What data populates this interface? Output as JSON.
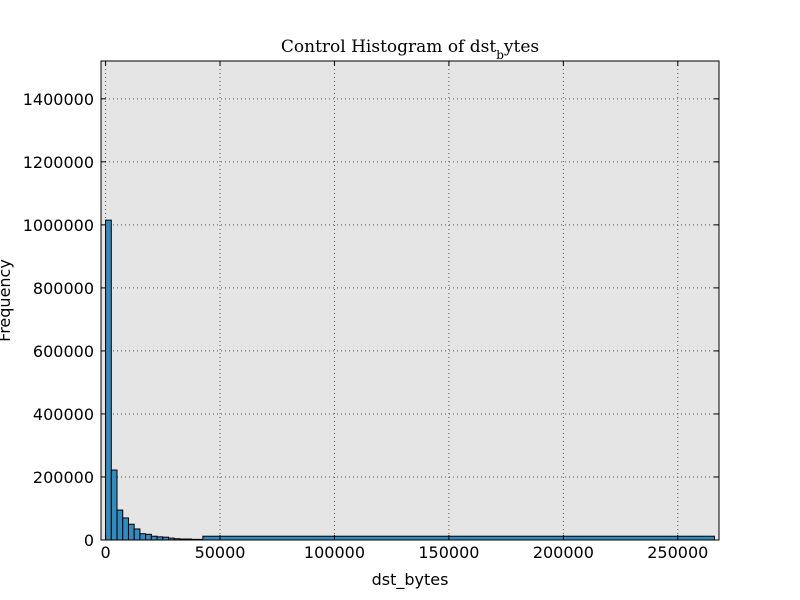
{
  "chart_data": {
    "type": "bar",
    "title": "Control Histogram of dst",
    "title_subscript": "b",
    "title_suffix": "ytes",
    "xlabel": "dst_bytes",
    "ylabel": "Frequency",
    "xlim": [
      -2000,
      268000
    ],
    "ylim": [
      0,
      1520000
    ],
    "x_ticks": [
      0,
      50000,
      100000,
      150000,
      200000,
      250000
    ],
    "x_tick_labels": [
      "0",
      "50000",
      "100000",
      "150000",
      "200000",
      "250000"
    ],
    "y_ticks": [
      0,
      200000,
      400000,
      600000,
      800000,
      1000000,
      1200000,
      1400000
    ],
    "y_tick_labels": [
      "0",
      "200000",
      "400000",
      "600000",
      "800000",
      "1000000",
      "1200000",
      "1400000"
    ],
    "grid": true,
    "bins": [
      {
        "start": 0,
        "end": 2500,
        "value": 1015000
      },
      {
        "start": 2500,
        "end": 5000,
        "value": 222000
      },
      {
        "start": 5000,
        "end": 7500,
        "value": 95000
      },
      {
        "start": 7500,
        "end": 10000,
        "value": 70000
      },
      {
        "start": 10000,
        "end": 12500,
        "value": 50000
      },
      {
        "start": 12500,
        "end": 15000,
        "value": 35000
      },
      {
        "start": 15000,
        "end": 17500,
        "value": 20000
      },
      {
        "start": 17500,
        "end": 20000,
        "value": 18000
      },
      {
        "start": 20000,
        "end": 22500,
        "value": 12000
      },
      {
        "start": 22500,
        "end": 25000,
        "value": 10000
      },
      {
        "start": 25000,
        "end": 27500,
        "value": 9000
      },
      {
        "start": 27500,
        "end": 30000,
        "value": 6000
      },
      {
        "start": 30000,
        "end": 32500,
        "value": 4000
      },
      {
        "start": 32500,
        "end": 35000,
        "value": 3000
      },
      {
        "start": 35000,
        "end": 37500,
        "value": 3000
      },
      {
        "start": 37500,
        "end": 40000,
        "value": 2000
      },
      {
        "start": 40000,
        "end": 42500,
        "value": 2000
      },
      {
        "start": 42500,
        "end": 266000,
        "value": 12000
      }
    ],
    "colors": {
      "bar": "#348abd",
      "bar_edge": "#000000",
      "plot_background": "#e5e5e5",
      "grid": "#555555"
    }
  }
}
